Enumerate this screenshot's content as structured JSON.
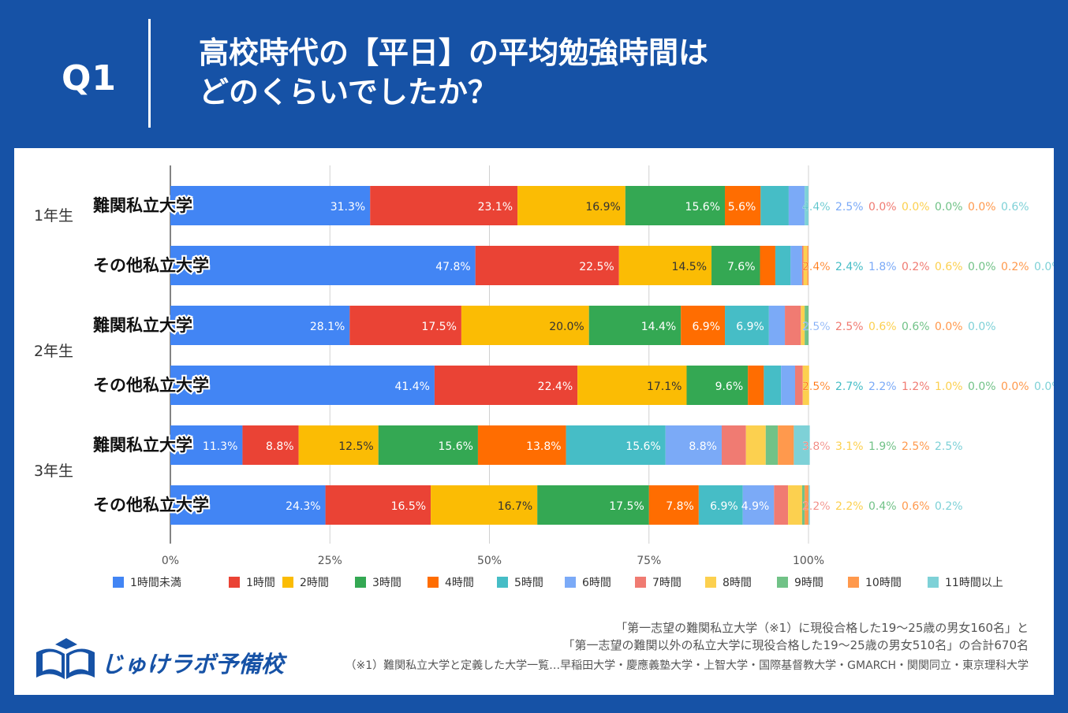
{
  "header": {
    "q_label": "Q1",
    "title_line1": "高校時代の【平日】の平均勉強時間は",
    "title_line2": "どのくらいでしたか？"
  },
  "footer": {
    "source_line1": "「第一志望の難関私立大学（※1）に現役合格した19～25歳の男女160名」と",
    "source_line2": "「第一志望の難関以外の私立大学に現役合格した19～25歳の男女510名」の合計670名",
    "footnote": "（※1）難関私立大学と定義した大学一覧…早稲田大学・慶應義塾大学・上智大学・国際基督教大学・GMARCH・関関同立・東京理科大学",
    "logo_text": "じゅけラボ予備校"
  },
  "colors": {
    "brand_blue": "#1652a6",
    "series": [
      "#4285f4",
      "#ea4335",
      "#fbbc04",
      "#34a853",
      "#ff6d01",
      "#46bdc6",
      "#7baaf7",
      "#f07b72",
      "#fcd04f",
      "#71c287",
      "#ff994d",
      "#7ed1d7"
    ]
  },
  "chart_data": {
    "type": "bar",
    "orientation": "horizontal",
    "stacked": true,
    "groups": [
      "1年生",
      "2年生",
      "3年生"
    ],
    "categories": [
      "難関私立大学",
      "その他私立大学",
      "難関私立大学",
      "その他私立大学",
      "難関私立大学",
      "その他私立大学"
    ],
    "category_group": [
      0,
      0,
      1,
      1,
      2,
      2
    ],
    "xlim": [
      0,
      100
    ],
    "x_ticks": [
      "0%",
      "25%",
      "50%",
      "75%",
      "100%"
    ],
    "grid": true,
    "legend_position": "bottom",
    "value_suffix": "%",
    "series": [
      {
        "name": "1時間未満",
        "values": [
          31.3,
          47.8,
          28.1,
          41.4,
          11.3,
          24.3
        ]
      },
      {
        "name": "1時間",
        "values": [
          23.1,
          22.5,
          17.5,
          22.4,
          8.8,
          16.5
        ]
      },
      {
        "name": "2時間",
        "values": [
          16.9,
          14.5,
          20.0,
          17.1,
          12.5,
          16.7
        ]
      },
      {
        "name": "3時間",
        "values": [
          15.6,
          7.6,
          14.4,
          9.6,
          15.6,
          17.5
        ]
      },
      {
        "name": "4時間",
        "values": [
          5.6,
          2.4,
          6.9,
          2.5,
          13.8,
          7.8
        ]
      },
      {
        "name": "5時間",
        "values": [
          4.4,
          2.4,
          6.9,
          2.7,
          15.6,
          6.9
        ]
      },
      {
        "name": "6時間",
        "values": [
          2.5,
          1.8,
          2.5,
          2.2,
          8.8,
          4.9
        ]
      },
      {
        "name": "7時間",
        "values": [
          0.0,
          0.2,
          2.5,
          1.2,
          3.8,
          2.2
        ]
      },
      {
        "name": "8時間",
        "values": [
          0.0,
          0.6,
          0.6,
          1.0,
          3.1,
          2.2
        ]
      },
      {
        "name": "9時間",
        "values": [
          0.0,
          0.0,
          0.6,
          0.0,
          1.9,
          0.4
        ]
      },
      {
        "name": "10時間",
        "values": [
          0.0,
          0.2,
          0.0,
          0.0,
          2.5,
          0.6
        ]
      },
      {
        "name": "11時間以上",
        "values": [
          0.6,
          0.0,
          0.0,
          0.0,
          2.5,
          0.2
        ]
      }
    ]
  }
}
